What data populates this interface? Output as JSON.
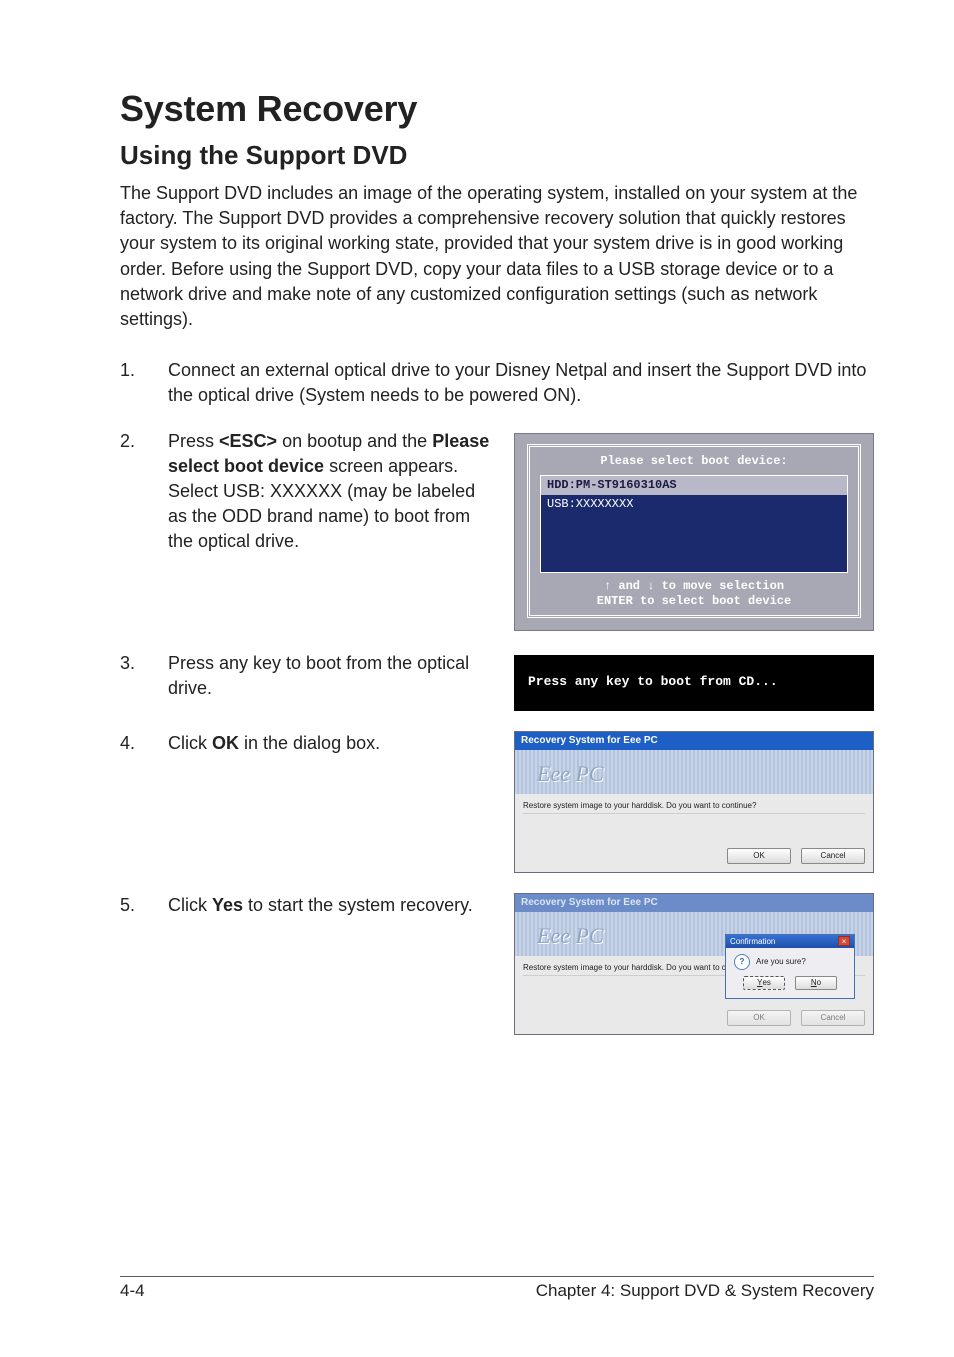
{
  "title": "System Recovery",
  "subtitle": "Using the Support DVD",
  "intro": "The Support DVD includes an image of the operating system, installed on your system at the factory. The Support DVD provides a comprehensive recovery solution that quickly restores your system to its original working state, provided that your system drive is in good working order. Before using the Support DVD, copy your data files to a USB storage device or to a network drive and make note of any customized configuration settings (such as network settings).",
  "steps": {
    "s1_num": "1.",
    "s1": "Connect an external optical drive to your Disney Netpal and insert the Support DVD into the optical drive (System needs to be powered ON).",
    "s2_num": "2.",
    "s2_pre": "Press ",
    "s2_esc": "<ESC>",
    "s2_mid": " on bootup and the ",
    "s2_bold": "Please select boot device",
    "s2_post": " screen appears. Select USB: XXXXXX (may be labeled as the ODD brand name) to boot from the optical drive.",
    "s3_num": "3.",
    "s3": "Press any key to boot from the optical drive.",
    "s4_num": "4.",
    "s4_pre": "Click ",
    "s4_ok": "OK",
    "s4_post": " in the dialog box.",
    "s5_num": "5.",
    "s5_pre": "Click ",
    "s5_yes": "Yes",
    "s5_post": " to start the system recovery."
  },
  "bios": {
    "title": "Please select boot device:",
    "hdd": "HDD:PM-ST9160310AS",
    "usb": "USB:XXXXXXXX",
    "hint1": "↑ and ↓ to move selection",
    "hint2": "ENTER to select boot device"
  },
  "cd_prompt": "Press any key to boot from CD...",
  "recovery": {
    "title": "Recovery System for Eee PC",
    "banner_text": "Eee PC",
    "question": "Restore system image to your harddisk. Do you want to continue?",
    "ok": "OK",
    "cancel": "Cancel"
  },
  "confirmation": {
    "title": "Confirmation",
    "text": "Are you sure?",
    "yes": "Yes",
    "no": "No"
  },
  "footer": {
    "page": "4-4",
    "chapter": "Chapter 4: Support DVD & System Recovery"
  }
}
